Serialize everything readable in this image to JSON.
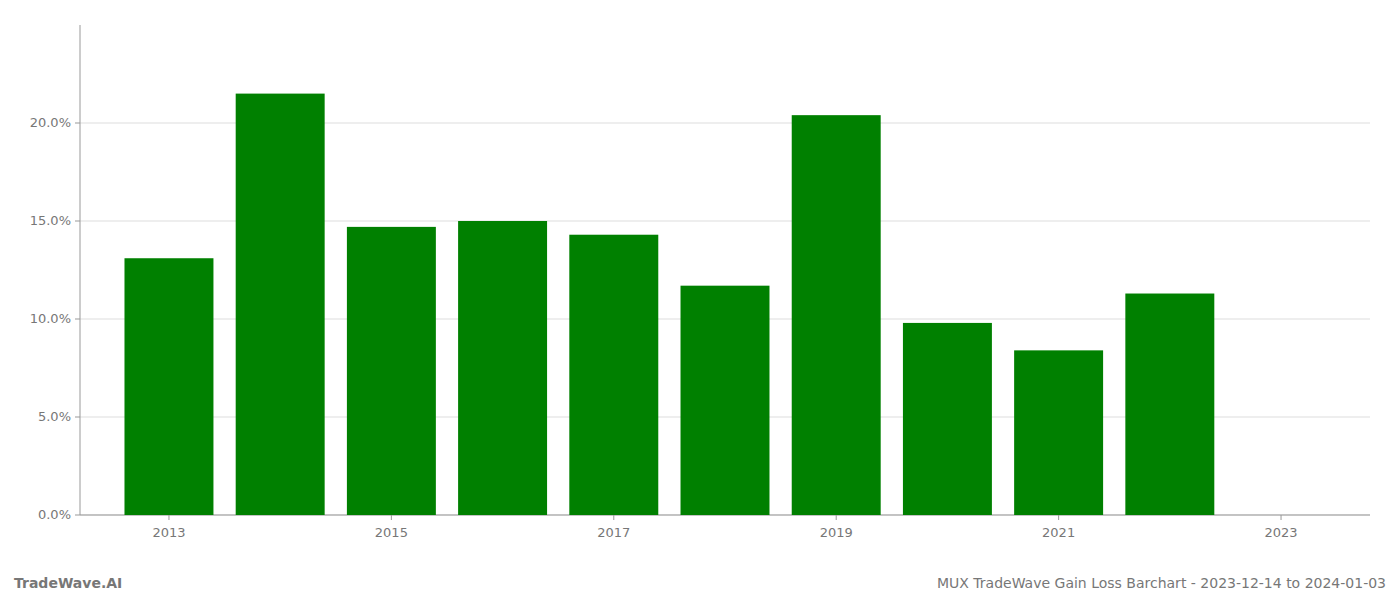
{
  "chart_data": {
    "type": "bar",
    "x": [
      2013,
      2014,
      2015,
      2016,
      2017,
      2018,
      2019,
      2020,
      2021,
      2022
    ],
    "values": [
      0.131,
      0.215,
      0.147,
      0.15,
      0.143,
      0.117,
      0.204,
      0.098,
      0.084,
      0.113
    ],
    "color": "#008000",
    "xlim": [
      2012.2,
      2023.8
    ],
    "xticks": [
      2013,
      2015,
      2017,
      2019,
      2021,
      2023
    ],
    "ylim": [
      0,
      0.25
    ],
    "yticks": [
      {
        "value": 0.0,
        "label": "0.0%"
      },
      {
        "value": 0.05,
        "label": "5.0%"
      },
      {
        "value": 0.1,
        "label": "10.0%"
      },
      {
        "value": 0.15,
        "label": "15.0%"
      },
      {
        "value": 0.2,
        "label": "20.0%"
      }
    ],
    "grid": true,
    "annotations": [
      "TradeWave.AI",
      "MUX TradeWave Gain Loss Barchart - 2023-12-14 to 2024-01-03"
    ]
  }
}
